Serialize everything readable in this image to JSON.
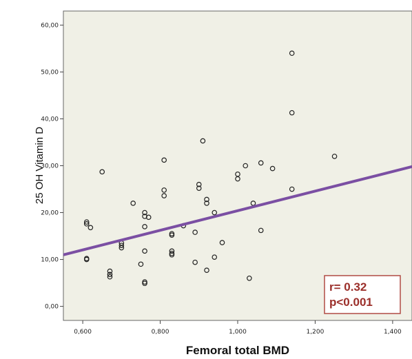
{
  "chart_data": {
    "type": "scatter",
    "title": "",
    "xlabel": "Femoral total BMD",
    "ylabel": "25 OH Vitamin D",
    "xlim": [
      0.55,
      1.45
    ],
    "ylim": [
      -3,
      63
    ],
    "x_ticks": [
      0.6,
      0.8,
      1.0,
      1.2,
      1.4
    ],
    "x_tick_labels": [
      "0,600",
      "0,800",
      "1,000",
      "1,200",
      "1,400"
    ],
    "y_ticks": [
      0,
      10,
      20,
      30,
      40,
      50,
      60
    ],
    "y_tick_labels": [
      "0,00",
      "10,00",
      "20,00",
      "30,00",
      "40,00",
      "50,00",
      "60,00"
    ],
    "grid": false,
    "background_color": "#f0f0e6",
    "series": [
      {
        "points": [
          [
            0.61,
            18.0
          ],
          [
            0.61,
            17.6
          ],
          [
            0.62,
            16.8
          ],
          [
            0.61,
            10.2
          ],
          [
            0.61,
            10.0
          ],
          [
            0.65,
            28.7
          ],
          [
            0.67,
            7.5
          ],
          [
            0.67,
            6.8
          ],
          [
            0.67,
            6.3
          ],
          [
            0.7,
            13.5
          ],
          [
            0.7,
            13.0
          ],
          [
            0.7,
            12.5
          ],
          [
            0.73,
            22.0
          ],
          [
            0.75,
            9.0
          ],
          [
            0.76,
            20.0
          ],
          [
            0.76,
            19.2
          ],
          [
            0.76,
            17.0
          ],
          [
            0.76,
            11.8
          ],
          [
            0.76,
            5.2
          ],
          [
            0.76,
            4.9
          ],
          [
            0.77,
            19.0
          ],
          [
            0.81,
            31.2
          ],
          [
            0.81,
            24.8
          ],
          [
            0.81,
            23.6
          ],
          [
            0.83,
            15.5
          ],
          [
            0.83,
            15.2
          ],
          [
            0.83,
            11.8
          ],
          [
            0.83,
            11.3
          ],
          [
            0.83,
            11.0
          ],
          [
            0.86,
            17.2
          ],
          [
            0.89,
            9.4
          ],
          [
            0.89,
            15.8
          ],
          [
            0.9,
            26.0
          ],
          [
            0.9,
            25.2
          ],
          [
            0.91,
            35.3
          ],
          [
            0.92,
            22.8
          ],
          [
            0.92,
            22.0
          ],
          [
            0.92,
            7.7
          ],
          [
            0.94,
            20.0
          ],
          [
            0.94,
            10.5
          ],
          [
            0.96,
            13.6
          ],
          [
            1.0,
            28.2
          ],
          [
            1.0,
            27.2
          ],
          [
            1.02,
            30.0
          ],
          [
            1.03,
            6.0
          ],
          [
            1.04,
            22.0
          ],
          [
            1.06,
            30.6
          ],
          [
            1.06,
            16.2
          ],
          [
            1.09,
            29.4
          ],
          [
            1.14,
            54.0
          ],
          [
            1.14,
            41.3
          ],
          [
            1.14,
            25.0
          ],
          [
            1.25,
            32.0
          ]
        ],
        "marker": "open-circle",
        "color": "#222222"
      }
    ],
    "fit_line": {
      "x": [
        0.55,
        1.45
      ],
      "y": [
        11.0,
        29.8
      ],
      "color": "#7b4fa3"
    },
    "annotation": {
      "lines": [
        "r= 0.32",
        "p<0.001"
      ],
      "color": "#9b2f2a"
    }
  }
}
